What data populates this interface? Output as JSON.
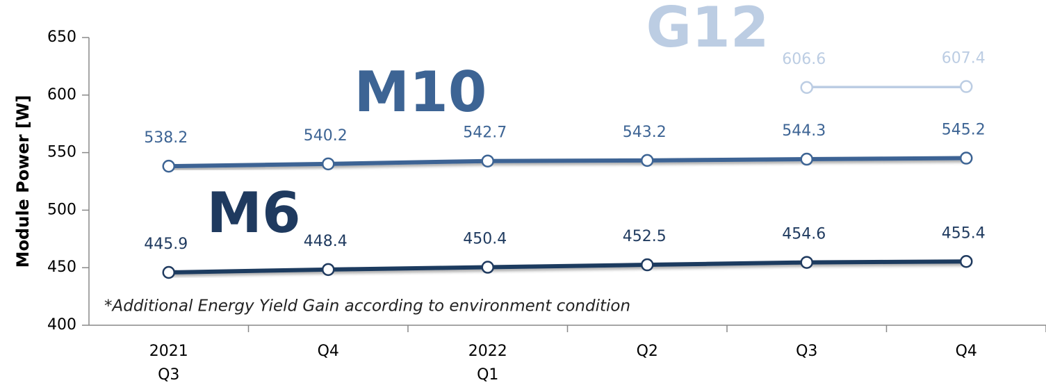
{
  "chart_data": {
    "type": "line",
    "y_label": "Module Power [W]",
    "annotation": "*Additional Energy Yield Gain according to environment condition",
    "categories": [
      "2021\nQ3",
      "Q4",
      "2022\nQ1",
      "Q2",
      "Q3",
      "Q4"
    ],
    "series": [
      {
        "name": "M6",
        "color": "#1f3a5f",
        "values": [
          445.9,
          448.4,
          450.4,
          452.5,
          454.6,
          455.4
        ]
      },
      {
        "name": "M10",
        "color": "#3d6494",
        "values": [
          538.2,
          540.2,
          542.7,
          543.2,
          544.3,
          545.2
        ]
      },
      {
        "name": "G12",
        "color": "#bccde3",
        "values": [
          null,
          null,
          null,
          null,
          606.6,
          607.4
        ]
      }
    ],
    "ylim": [
      400,
      650
    ],
    "yticks": [
      400,
      450,
      500,
      550,
      600,
      650
    ],
    "grid": false
  }
}
